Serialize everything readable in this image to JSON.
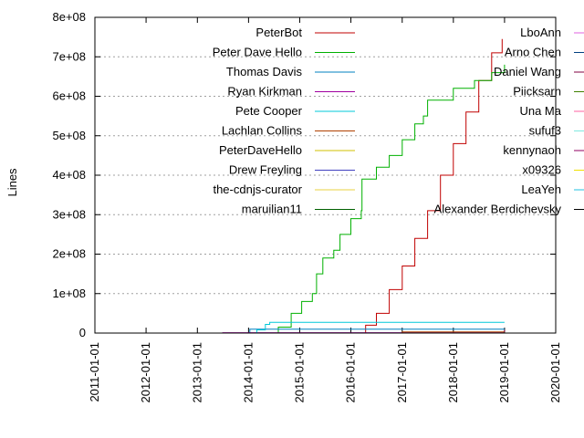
{
  "chart_data": {
    "type": "line",
    "title": "",
    "xlabel": "",
    "ylabel": "Lines",
    "xlim": [
      "2011-01-01",
      "2020-01-01"
    ],
    "ylim": [
      0,
      800000000
    ],
    "yticks": [
      {
        "value": 0,
        "label": "0"
      },
      {
        "value": 100000000,
        "label": "1e+08"
      },
      {
        "value": 200000000,
        "label": "2e+08"
      },
      {
        "value": 300000000,
        "label": "3e+08"
      },
      {
        "value": 400000000,
        "label": "4e+08"
      },
      {
        "value": 500000000,
        "label": "5e+08"
      },
      {
        "value": 600000000,
        "label": "6e+08"
      },
      {
        "value": 700000000,
        "label": "7e+08"
      },
      {
        "value": 800000000,
        "label": "8e+08"
      }
    ],
    "xticks": [
      "2011-01-01",
      "2012-01-01",
      "2013-01-01",
      "2014-01-01",
      "2015-01-01",
      "2016-01-01",
      "2017-01-01",
      "2018-01-01",
      "2019-01-01",
      "2020-01-01"
    ],
    "grid": true,
    "legend_placement": "inside, two columns across the top",
    "series": [
      {
        "name": "PeterBot",
        "color": "#c00000",
        "points": [
          [
            "2016-02-10",
            0
          ],
          [
            "2016-04-15",
            20000000
          ],
          [
            "2016-07-01",
            50000000
          ],
          [
            "2016-10-01",
            110000000
          ],
          [
            "2017-01-01",
            170000000
          ],
          [
            "2017-04-01",
            240000000
          ],
          [
            "2017-07-01",
            310000000
          ],
          [
            "2017-10-01",
            400000000
          ],
          [
            "2018-01-01",
            480000000
          ],
          [
            "2018-04-01",
            560000000
          ],
          [
            "2018-07-01",
            640000000
          ],
          [
            "2018-10-01",
            710000000
          ],
          [
            "2018-12-15",
            745000000
          ]
        ]
      },
      {
        "name": "Peter Dave Hello",
        "color": "#00b000",
        "points": [
          [
            "2014-06-01",
            0
          ],
          [
            "2014-08-01",
            15000000
          ],
          [
            "2014-11-01",
            50000000
          ],
          [
            "2015-01-15",
            80000000
          ],
          [
            "2015-04-01",
            100000000
          ],
          [
            "2015-05-01",
            150000000
          ],
          [
            "2015-06-15",
            190000000
          ],
          [
            "2015-09-01",
            210000000
          ],
          [
            "2015-10-15",
            250000000
          ],
          [
            "2016-01-01",
            290000000
          ],
          [
            "2016-03-15",
            310000000
          ],
          [
            "2016-03-20",
            390000000
          ],
          [
            "2016-07-01",
            420000000
          ],
          [
            "2016-10-01",
            450000000
          ],
          [
            "2017-01-01",
            490000000
          ],
          [
            "2017-04-01",
            530000000
          ],
          [
            "2017-06-01",
            550000000
          ],
          [
            "2017-07-01",
            590000000
          ],
          [
            "2018-01-01",
            620000000
          ],
          [
            "2018-06-01",
            640000000
          ],
          [
            "2018-10-01",
            660000000
          ],
          [
            "2019-01-01",
            680000000
          ]
        ]
      },
      {
        "name": "Thomas Davis",
        "color": "#0080c0",
        "points": [
          [
            "2014-01-01",
            0
          ],
          [
            "2014-01-10",
            10000000
          ],
          [
            "2019-01-01",
            10000000
          ]
        ]
      },
      {
        "name": "Ryan Kirkman",
        "color": "#a000a0",
        "points": [
          [
            "2013-06-01",
            0
          ],
          [
            "2013-07-01",
            1000000
          ],
          [
            "2019-01-01",
            2000000
          ]
        ]
      },
      {
        "name": "Pete Cooper",
        "color": "#00c8d8",
        "points": [
          [
            "2014-01-01",
            0
          ],
          [
            "2014-03-01",
            8000000
          ],
          [
            "2014-05-01",
            22000000
          ],
          [
            "2014-06-01",
            27000000
          ],
          [
            "2019-01-01",
            27000000
          ]
        ]
      },
      {
        "name": "Lachlan Collins",
        "color": "#b04000",
        "points": [
          [
            "2016-06-01",
            0
          ],
          [
            "2017-01-01",
            3000000
          ],
          [
            "2019-01-01",
            5000000
          ]
        ]
      },
      {
        "name": "PeterDaveHello",
        "color": "#d0c000",
        "points": [
          [
            "2016-01-01",
            0
          ],
          [
            "2019-01-01",
            1000000
          ]
        ]
      },
      {
        "name": "Drew Freyling",
        "color": "#4040c0",
        "points": [
          [
            "2016-06-01",
            0
          ],
          [
            "2019-01-01",
            1500000
          ]
        ]
      },
      {
        "name": "the-cdnjs-curator",
        "color": "#e8d040",
        "points": [
          [
            "2017-01-01",
            0
          ],
          [
            "2019-01-01",
            1000000
          ]
        ]
      },
      {
        "name": "maruilian11",
        "color": "#006000",
        "points": [
          [
            "2016-01-01",
            0
          ],
          [
            "2019-01-01",
            3000000
          ]
        ]
      },
      {
        "name": "LboAnn",
        "color": "#e060e0",
        "points": [
          [
            "2017-01-01",
            0
          ],
          [
            "2019-01-01",
            1000000
          ]
        ]
      },
      {
        "name": "Arno Chen",
        "color": "#004080",
        "points": [
          [
            "2016-01-01",
            0
          ],
          [
            "2019-01-01",
            2000000
          ]
        ]
      },
      {
        "name": "Daniel Wang",
        "color": "#800040",
        "points": [
          [
            "2016-09-01",
            0
          ],
          [
            "2019-01-01",
            8000000
          ]
        ]
      },
      {
        "name": "Piicksarn",
        "color": "#408000",
        "points": [
          [
            "2016-06-01",
            0
          ],
          [
            "2019-01-01",
            2000000
          ]
        ]
      },
      {
        "name": "Una Ma",
        "color": "#ff60a0",
        "points": [
          [
            "2017-01-01",
            0
          ],
          [
            "2019-01-01",
            1000000
          ]
        ]
      },
      {
        "name": "sufuf3",
        "color": "#80e8e0",
        "points": [
          [
            "2016-06-01",
            0
          ],
          [
            "2019-01-01",
            1000000
          ]
        ]
      },
      {
        "name": "kennynaoh",
        "color": "#900060",
        "points": [
          [
            "2016-01-01",
            0
          ],
          [
            "2019-01-01",
            1000000
          ]
        ]
      },
      {
        "name": "x09326",
        "color": "#f0e000",
        "points": [
          [
            "2017-01-01",
            0
          ],
          [
            "2019-01-01",
            1000000
          ]
        ]
      },
      {
        "name": "LeaYeh",
        "color": "#20c0e0",
        "points": [
          [
            "2017-01-01",
            0
          ],
          [
            "2019-01-01",
            1000000
          ]
        ]
      },
      {
        "name": "Alexander Berdichevsky",
        "color": "#000000",
        "points": [
          [
            "2016-01-01",
            0
          ],
          [
            "2019-01-01",
            1000000
          ]
        ]
      }
    ]
  }
}
